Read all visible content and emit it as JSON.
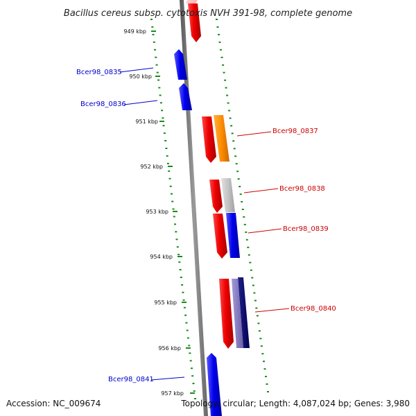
{
  "title": "Bacillus cereus subsp. cytotoxis NVH 391-98, complete genome",
  "footer": {
    "accession": "Accession: NC_009674",
    "topology": "Topology: circular; Length: 4,087,024 bp; Genes: 3,980"
  },
  "ticks": [
    {
      "label": "949 kbp"
    },
    {
      "label": "950 kbp"
    },
    {
      "label": "951 kbp"
    },
    {
      "label": "952 kbp"
    },
    {
      "label": "953 kbp"
    },
    {
      "label": "954 kbp"
    },
    {
      "label": "955 kbp"
    },
    {
      "label": "956 kbp"
    },
    {
      "label": "957 kbp"
    }
  ],
  "genes": [
    {
      "label": "Bcer98_0835",
      "color": "#0000cc"
    },
    {
      "label": "Bcer98_0836",
      "color": "#0000cc"
    },
    {
      "label": "Bcer98_0837",
      "color": "#cc0000"
    },
    {
      "label": "Bcer98_0838",
      "color": "#cc0000"
    },
    {
      "label": "Bcer98_0839",
      "color": "#cc0000"
    },
    {
      "label": "Bcer98_0840",
      "color": "#cc0000"
    },
    {
      "label": "Bcer98_0841",
      "color": "#0000cc"
    }
  ],
  "colors": {
    "forward_cds": "#ee0000",
    "reverse_cds": "#0000ee",
    "orange_feature": "#ff8c00",
    "gray_feature": "#c0c0c0",
    "purple_feature": "#7a6fb0",
    "navy_feature": "#000066",
    "tick_color": "#1a8a1a",
    "backbone": "#888888"
  }
}
